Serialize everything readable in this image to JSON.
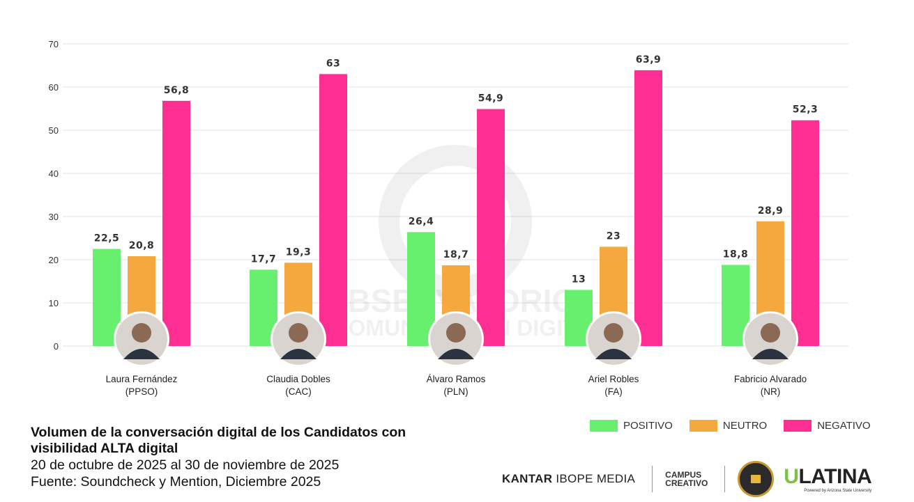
{
  "chart_data": {
    "type": "bar",
    "title": "Volumen de la conversación digital de los Candidatos con visibilidad ALTA digital",
    "subtitle": [
      "20 de octubre de 2025 al 30 de noviembre de 2025",
      "Fuente: Soundcheck y Mention, Diciembre 2025"
    ],
    "categories": [
      {
        "name": "Laura Fernández",
        "party": "(PPSO)"
      },
      {
        "name": "Claudia Dobles",
        "party": "(CAC)"
      },
      {
        "name": "Álvaro Ramos",
        "party": "(PLN)"
      },
      {
        "name": "Ariel Robles",
        "party": "(FA)"
      },
      {
        "name": "Fabricio Alvarado",
        "party": "(NR)"
      }
    ],
    "series": [
      {
        "name": "POSITIVO",
        "color": "#66f06e",
        "values": [
          22.5,
          17.7,
          26.4,
          13,
          18.8
        ],
        "labels": [
          "22,5",
          "17,7",
          "26,4",
          "13",
          "18,8"
        ]
      },
      {
        "name": "NEUTRO",
        "color": "#f5a83e",
        "values": [
          20.8,
          19.3,
          18.7,
          23,
          28.9
        ],
        "labels": [
          "20,8",
          "19,3",
          "18,7",
          "23",
          "28,9"
        ]
      },
      {
        "name": "NEGATIVO",
        "color": "#ff2e93",
        "values": [
          56.8,
          63,
          54.9,
          63.9,
          52.3
        ],
        "labels": [
          "56,8",
          "63",
          "54,9",
          "63,9",
          "52,3"
        ]
      }
    ],
    "ylim": [
      0,
      70
    ],
    "yticks": [
      0,
      10,
      20,
      30,
      40,
      50,
      60,
      70
    ],
    "grid": true,
    "legend": "bottom-right",
    "xlabel": "",
    "ylabel": ""
  },
  "watermark": [
    "OBSERVATORIO",
    "DE COMUNICACIÓN DIGITAL"
  ],
  "logos": {
    "kantar_bold": "KANTAR",
    "kantar_rest": "IBOPE MEDIA",
    "campus": [
      "CAMPUS",
      "CREATIVO"
    ],
    "ulatina_u": "U",
    "ulatina_rest": "LATINA",
    "ulatina_sub": "Powered by Arizona State University"
  }
}
